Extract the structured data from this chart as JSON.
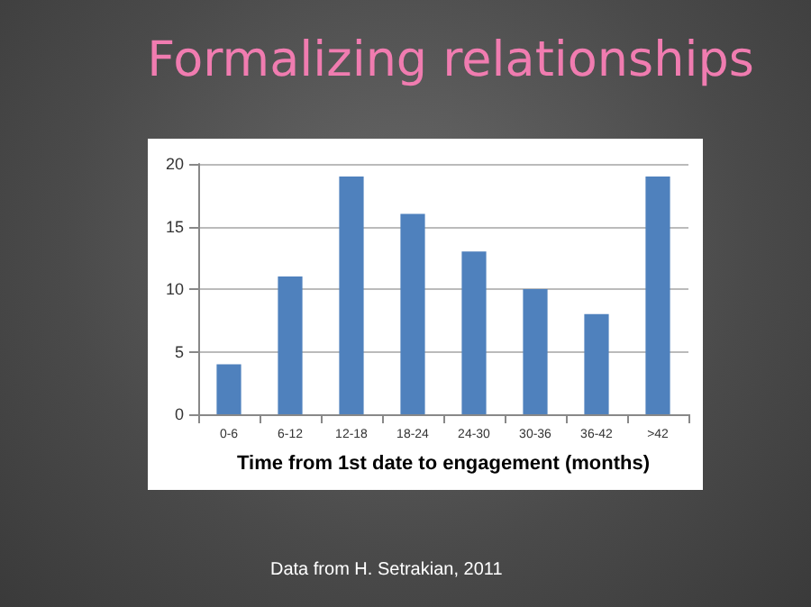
{
  "chart_data": {
    "type": "bar",
    "title": "Formalizing relationships",
    "xlabel": "Time from 1st date to engagement (months)",
    "categories": [
      "0-6",
      "6-12",
      "12-18",
      "18-24",
      "24-30",
      "30-36",
      "36-42",
      ">42"
    ],
    "values": [
      4,
      11,
      19,
      16,
      13,
      10,
      8,
      19
    ],
    "color": "#4f81bd",
    "ylim": [
      0,
      20
    ],
    "yticks": [
      0,
      5,
      10,
      15,
      20
    ],
    "grid": true,
    "annotations": [
      "Data from H. Setrakian, 2011"
    ]
  }
}
